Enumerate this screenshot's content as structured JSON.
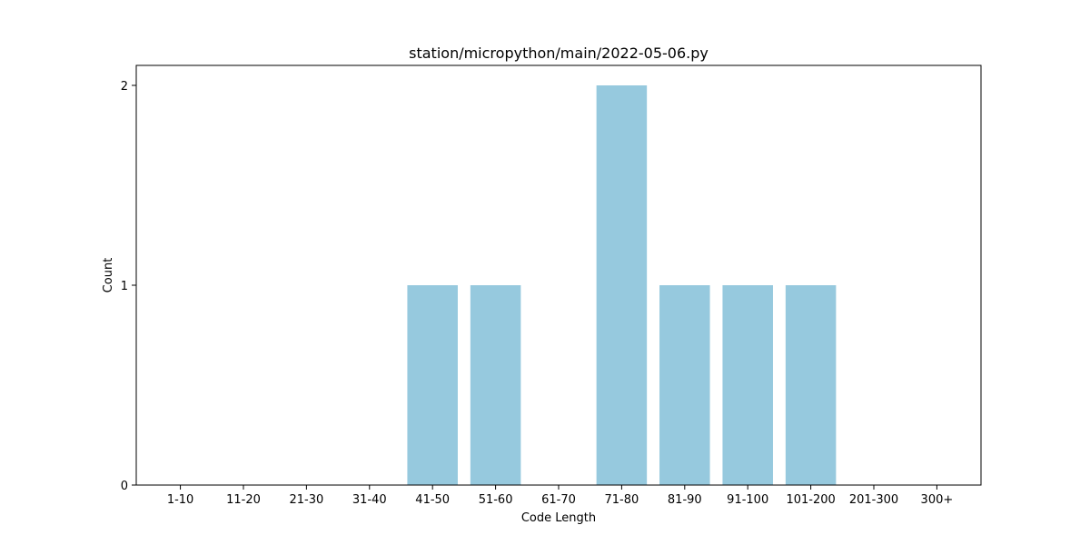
{
  "chart_data": {
    "type": "bar",
    "title": "station/micropython/main/2022-05-06.py",
    "xlabel": "Code Length",
    "ylabel": "Count",
    "categories": [
      "1-10",
      "11-20",
      "21-30",
      "31-40",
      "41-50",
      "51-60",
      "61-70",
      "71-80",
      "81-90",
      "91-100",
      "101-200",
      "201-300",
      "300+"
    ],
    "values": [
      0,
      0,
      0,
      0,
      1,
      1,
      0,
      2,
      1,
      1,
      1,
      0,
      0
    ],
    "ylim": [
      0,
      2.1
    ],
    "yticks": [
      0,
      1,
      2
    ],
    "bar_color": "#96c9de",
    "grid": false,
    "legend": "none"
  }
}
